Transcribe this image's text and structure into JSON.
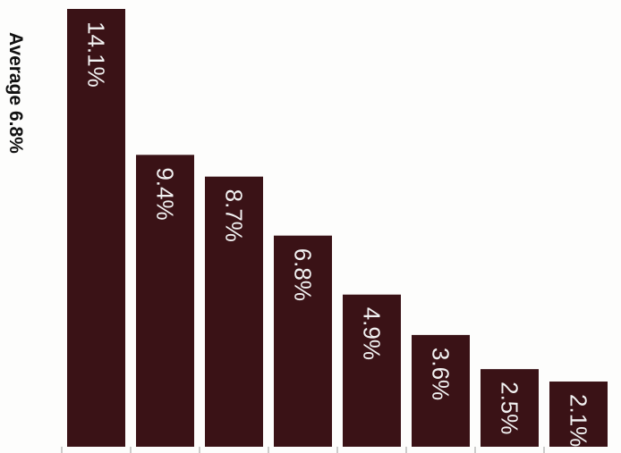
{
  "chart_data": {
    "type": "bar",
    "annotation": "Average 6.8%",
    "values": [
      14.1,
      9.4,
      8.7,
      6.8,
      4.9,
      3.6,
      2.5,
      2.1
    ],
    "value_labels": [
      "14.1%",
      "9.4%",
      "8.7%",
      "6.8%",
      "4.9%",
      "3.6%",
      "2.5%",
      "2.1%"
    ],
    "bar_color": "#3a1216",
    "label_color": "#f2f2f2",
    "label_orientation": "vertical",
    "grid": false,
    "legend": "none"
  }
}
